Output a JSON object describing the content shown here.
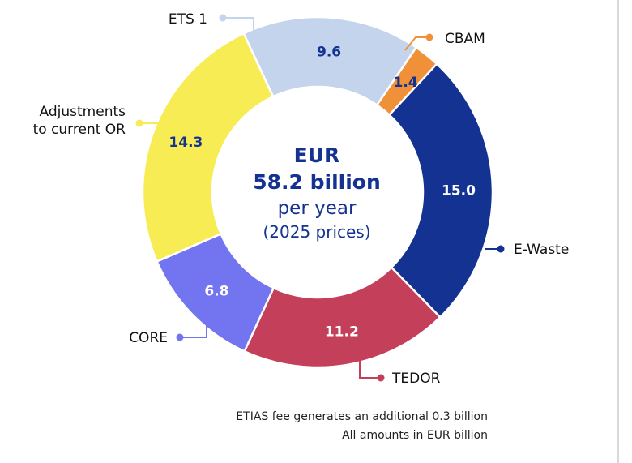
{
  "chart_data": {
    "type": "pie",
    "variant": "donut",
    "categories": [
      "ETS 1",
      "CBAM",
      "E-Waste",
      "TEDOR",
      "CORE",
      "Adjustments to current OR"
    ],
    "values": [
      9.6,
      1.4,
      15.0,
      11.2,
      6.8,
      14.3
    ],
    "value_labels": [
      "9.6",
      "1.4",
      "15.0",
      "11.2",
      "6.8",
      "14.3"
    ],
    "label_lines": [
      [
        "ETS 1"
      ],
      [
        "CBAM"
      ],
      [
        "E-Waste"
      ],
      [
        "TEDOR"
      ],
      [
        "CORE"
      ],
      [
        "Adjustments",
        "to current OR"
      ]
    ],
    "colors": [
      "#c3d4ec",
      "#f0913a",
      "#143291",
      "#c4405a",
      "#7374f0",
      "#f8ec55"
    ],
    "value_label_colors": [
      "#143291",
      "#143291",
      "#ffffff",
      "#ffffff",
      "#ffffff",
      "#143291"
    ],
    "center": {
      "line1": "EUR",
      "line2": "58.2 billion",
      "line3": "per year",
      "line4": "(2025 prices)"
    },
    "footnotes": [
      "ETIAS fee generates an additional 0.3 billion",
      "All amounts in EUR billion"
    ],
    "legend": "leader-lines"
  }
}
